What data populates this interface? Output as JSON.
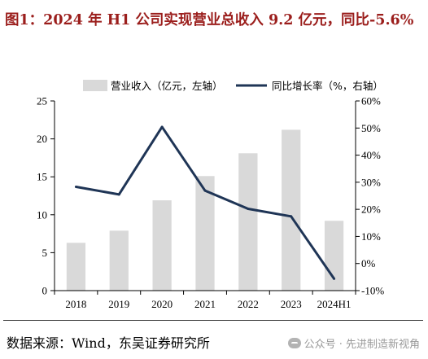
{
  "title": "图1：2024 年 H1 公司实现营业总收入 9.2 亿元，同比-5.6%",
  "source": "数据来源：Wind，东吴证券研究所",
  "watermark": "公众号 · 先进制造新视角",
  "colors": {
    "bar": "#d9d9d9",
    "line": "#1f3556",
    "title": "#9b1e1c"
  },
  "chart_data": {
    "type": "bar+line",
    "categories": [
      "2018",
      "2019",
      "2020",
      "2021",
      "2022",
      "2023",
      "2024H1"
    ],
    "series": [
      {
        "name": "营业收入（亿元，左轴）",
        "type": "bar",
        "axis": "left",
        "values": [
          6.3,
          7.9,
          11.9,
          15.1,
          18.1,
          21.2,
          9.2
        ]
      },
      {
        "name": "同比增长率（%，右轴）",
        "type": "line",
        "axis": "right",
        "values": [
          28.3,
          25.5,
          50.4,
          26.9,
          20.2,
          17.4,
          -5.6
        ]
      }
    ],
    "left_axis": {
      "ylim": [
        0,
        25
      ],
      "ticks": [
        "0",
        "5",
        "10",
        "15",
        "20",
        "25"
      ]
    },
    "right_axis": {
      "ylim": [
        -10,
        60
      ],
      "ticks": [
        "-10%",
        "0%",
        "10%",
        "20%",
        "30%",
        "40%",
        "50%",
        "60%"
      ]
    },
    "legend_position": "top",
    "grid": false
  }
}
